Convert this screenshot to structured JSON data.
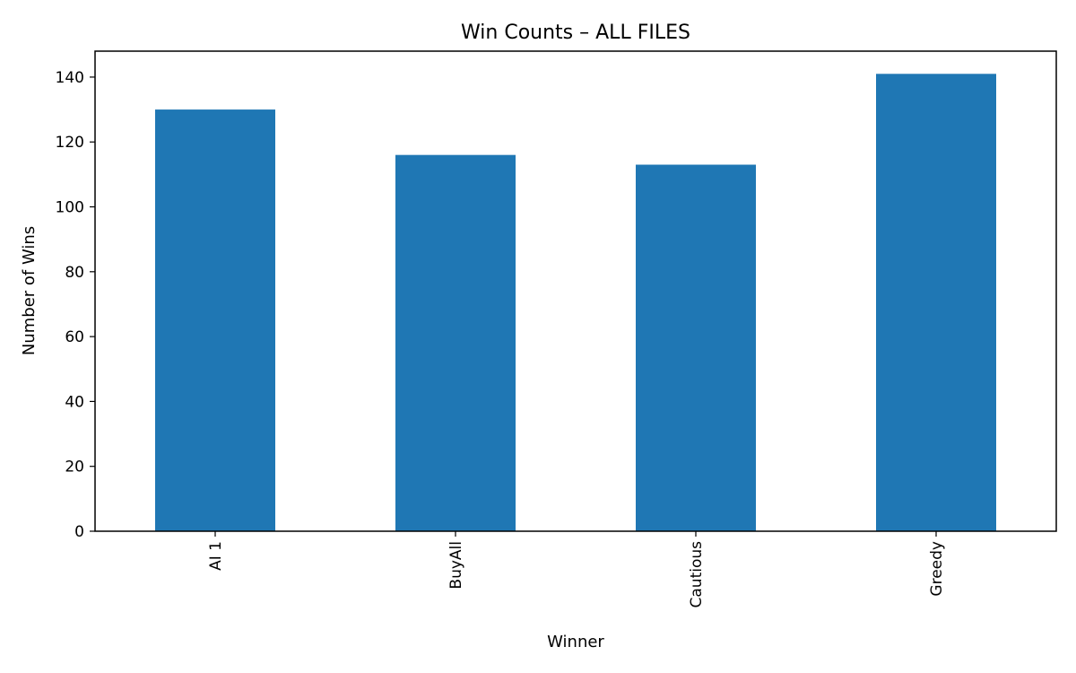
{
  "chart_data": {
    "type": "bar",
    "title": "Win Counts – ALL FILES",
    "xlabel": "Winner",
    "ylabel": "Number of Wins",
    "categories": [
      "AI 1",
      "BuyAll",
      "Cautious",
      "Greedy"
    ],
    "values": [
      130,
      116,
      113,
      141
    ],
    "ylim": [
      0,
      148
    ],
    "yticks": [
      0,
      20,
      40,
      60,
      80,
      100,
      120,
      140
    ],
    "grid": false,
    "legend": "none",
    "bar_color": "#1f77b4",
    "xtick_rotation": "vertical"
  }
}
